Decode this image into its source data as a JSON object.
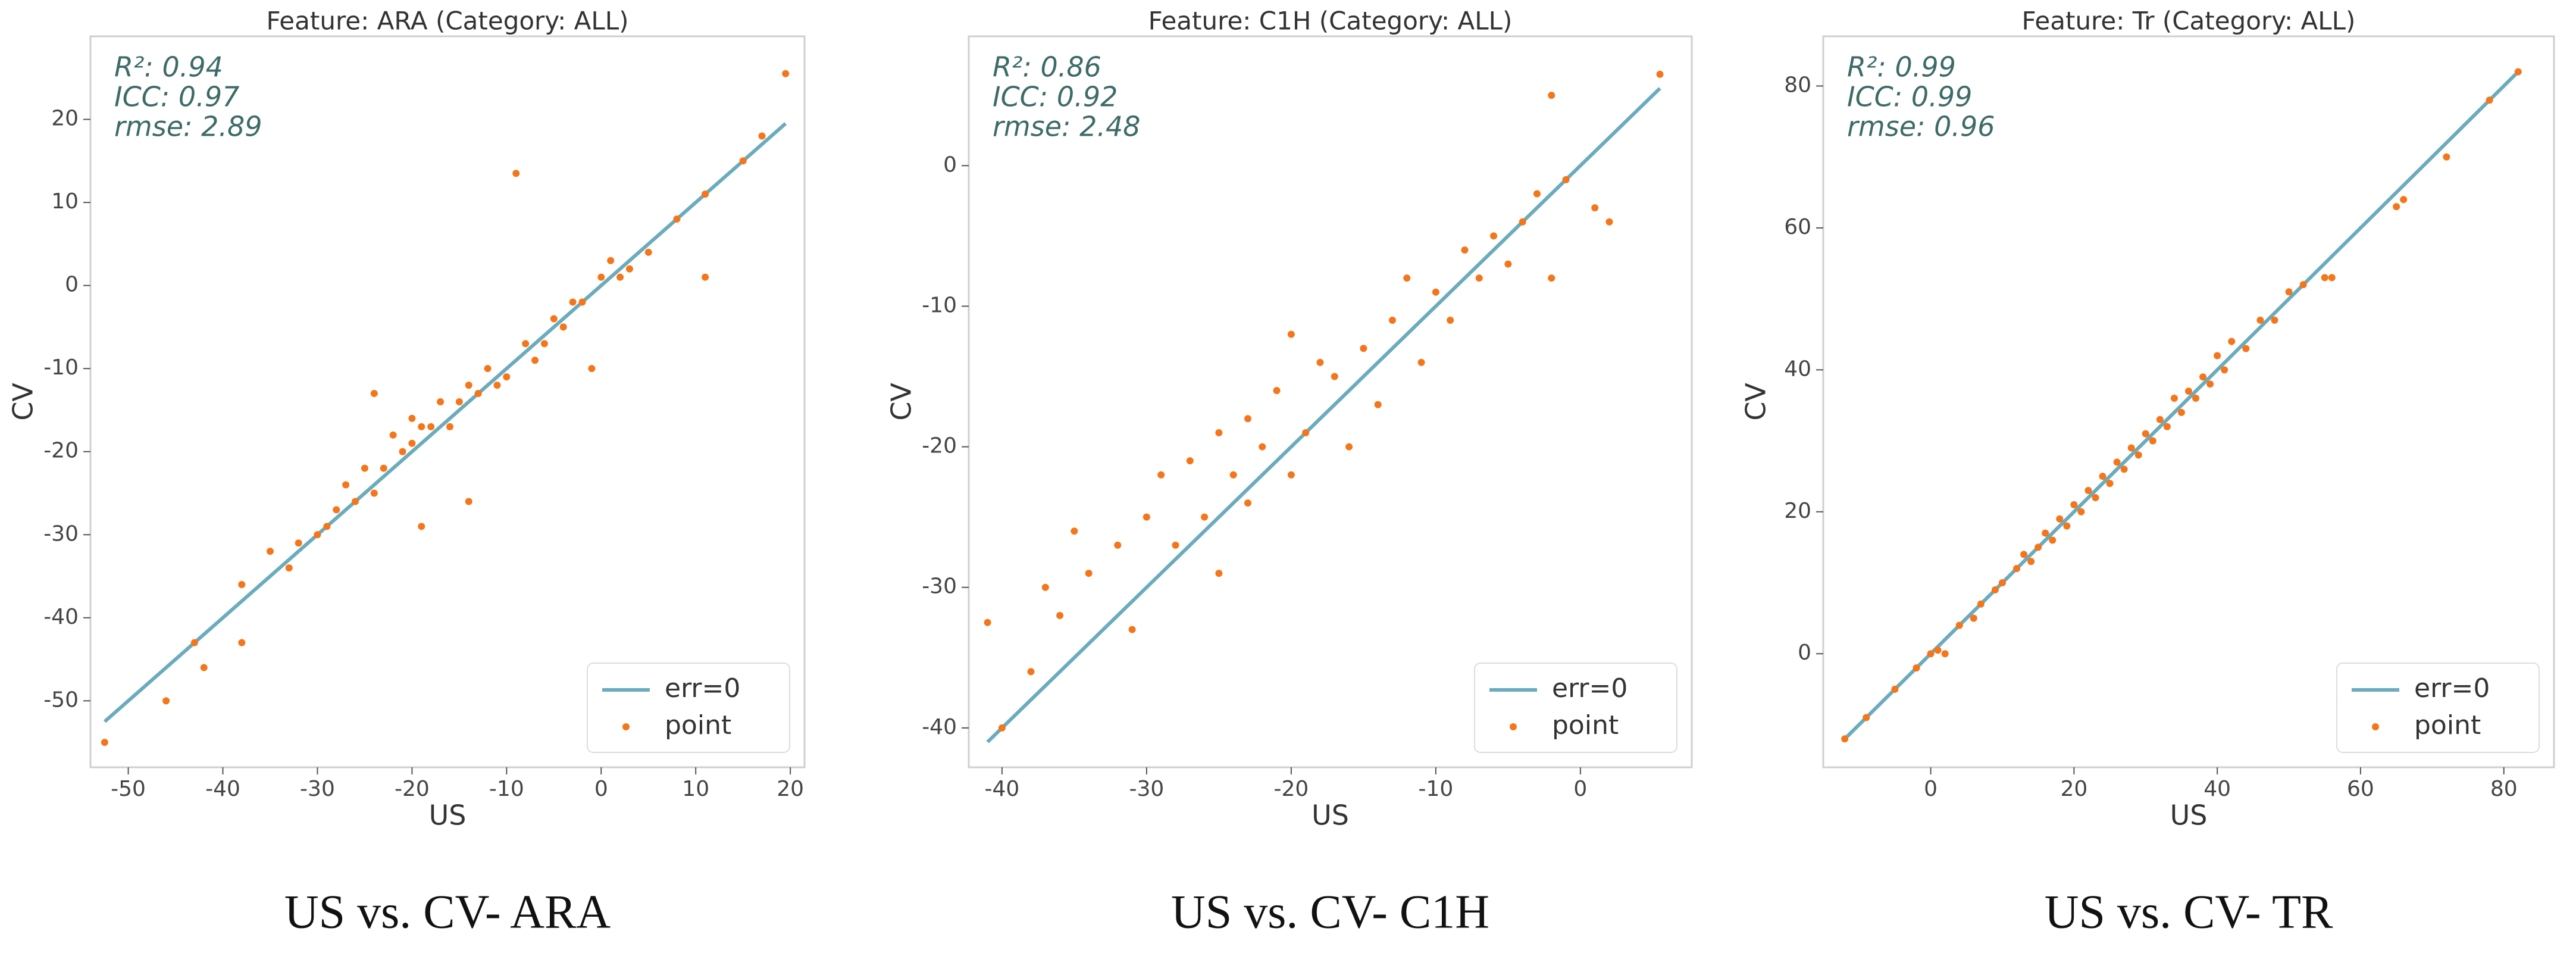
{
  "chart_data": [
    {
      "type": "scatter",
      "title": "Feature: ARA (Category: ALL)",
      "xlabel": "US",
      "ylabel": "CV",
      "caption": "US vs. CV- ARA",
      "annotations": [
        "R²: 0.94",
        "ICC: 0.97",
        "rmse: 2.89"
      ],
      "legend": "lower right",
      "xlim": [
        -54,
        21.5
      ],
      "ylim": [
        -58,
        30
      ],
      "xticks": [
        -50,
        -40,
        -30,
        -20,
        -10,
        0,
        10,
        20
      ],
      "yticks": [
        -50,
        -40,
        -30,
        -20,
        -10,
        0,
        10,
        20
      ],
      "series": [
        {
          "name": "err=0",
          "color": "#6aabbd",
          "mode": "line",
          "x": [
            -52.5,
            19.5
          ],
          "values": [
            -52.5,
            19.5
          ]
        },
        {
          "name": "point",
          "color": "#f5761a",
          "mode": "points",
          "x": [
            -52.5,
            -46,
            -43,
            -42,
            -38,
            -38,
            -35,
            -33,
            -32,
            -30,
            -29,
            -28,
            -27,
            -26,
            -25,
            -24,
            -24,
            -23,
            -22,
            -21,
            -20,
            -20,
            -19,
            -19,
            -18,
            -17,
            -16,
            -15,
            -14,
            -14,
            -13,
            -12,
            -11,
            -10,
            -9,
            -8,
            -7,
            -6,
            -5,
            -4,
            -3,
            -2,
            -1,
            0,
            1,
            2,
            3,
            5,
            8,
            11,
            11,
            15,
            17,
            19.5
          ],
          "values": [
            -55,
            -50,
            -43,
            -46,
            -36,
            -43,
            -32,
            -34,
            -31,
            -30,
            -29,
            -27,
            -24,
            -26,
            -22,
            -25,
            -13,
            -22,
            -18,
            -20,
            -19,
            -16,
            -17,
            -29,
            -17,
            -14,
            -17,
            -14,
            -12,
            -26,
            -13,
            -10,
            -12,
            -11,
            13.5,
            -7,
            -9,
            -7,
            -4,
            -5,
            -2,
            -2,
            -10,
            1,
            3,
            1,
            2,
            4,
            8,
            11,
            1,
            15,
            18,
            25.5
          ]
        }
      ]
    },
    {
      "type": "scatter",
      "title": "Feature: C1H (Category: ALL)",
      "xlabel": "US",
      "ylabel": "CV",
      "caption": "US vs. CV- C1H",
      "annotations": [
        "R²: 0.86",
        "ICC: 0.92",
        "rmse: 2.48"
      ],
      "legend": "lower right",
      "xlim": [
        -42.3,
        7.7
      ],
      "ylim": [
        -42.8,
        9.2
      ],
      "xticks": [
        -40,
        -30,
        -20,
        -10,
        0
      ],
      "yticks": [
        -40,
        -30,
        -20,
        -10,
        0
      ],
      "series": [
        {
          "name": "err=0",
          "color": "#6aabbd",
          "mode": "line",
          "x": [
            -41,
            5.5
          ],
          "values": [
            -41,
            5.5
          ]
        },
        {
          "name": "point",
          "color": "#f5761a",
          "mode": "points",
          "x": [
            -41,
            -40,
            -38,
            -37,
            -36,
            -35,
            -34,
            -32,
            -31,
            -30,
            -29,
            -28,
            -27,
            -26,
            -25,
            -25,
            -24,
            -23,
            -23,
            -22,
            -21,
            -20,
            -20,
            -19,
            -18,
            -17,
            -16,
            -15,
            -14,
            -13,
            -12,
            -11,
            -10,
            -9,
            -8,
            -7,
            -6,
            -5,
            -4,
            -3,
            -2,
            -2,
            -1,
            1,
            2,
            5.5
          ],
          "values": [
            -32.5,
            -40,
            -36,
            -30,
            -32,
            -26,
            -29,
            -27,
            -33,
            -25,
            -22,
            -27,
            -21,
            -25,
            -19,
            -29,
            -22,
            -18,
            -24,
            -20,
            -16,
            -12,
            -22,
            -19,
            -14,
            -15,
            -20,
            -13,
            -17,
            -11,
            -8,
            -14,
            -9,
            -11,
            -6,
            -8,
            -5,
            -7,
            -4,
            -2,
            5,
            -8,
            -1,
            -3,
            -4,
            6.5
          ]
        }
      ]
    },
    {
      "type": "scatter",
      "title": "Feature: Tr (Category: ALL)",
      "xlabel": "US",
      "ylabel": "CV",
      "caption": "US vs. CV- TR",
      "annotations": [
        "R²: 0.99",
        "ICC: 0.99",
        "rmse: 0.96"
      ],
      "legend": "lower right",
      "xlim": [
        -15,
        87
      ],
      "ylim": [
        -16,
        87
      ],
      "xticks": [
        0,
        20,
        40,
        60,
        80
      ],
      "yticks": [
        0,
        20,
        40,
        60,
        80
      ],
      "series": [
        {
          "name": "err=0",
          "color": "#6aabbd",
          "mode": "line",
          "x": [
            -12,
            82
          ],
          "values": [
            -12,
            82
          ]
        },
        {
          "name": "point",
          "color": "#f5761a",
          "mode": "points",
          "x": [
            -12,
            -9,
            -5,
            -2,
            0,
            1,
            2,
            4,
            6,
            7,
            9,
            10,
            12,
            13,
            14,
            15,
            16,
            17,
            18,
            19,
            20,
            21,
            22,
            23,
            24,
            25,
            26,
            27,
            28,
            29,
            30,
            31,
            32,
            33,
            34,
            35,
            36,
            37,
            38,
            39,
            40,
            41,
            42,
            44,
            46,
            48,
            50,
            52,
            55,
            56,
            65,
            66,
            72,
            78,
            82
          ],
          "values": [
            -12,
            -9,
            -5,
            -2,
            0,
            0.5,
            0,
            4,
            5,
            7,
            9,
            10,
            12,
            14,
            13,
            15,
            17,
            16,
            19,
            18,
            21,
            20,
            23,
            22,
            25,
            24,
            27,
            26,
            29,
            28,
            31,
            30,
            33,
            32,
            36,
            34,
            37,
            36,
            39,
            38,
            42,
            40,
            44,
            43,
            47,
            47,
            51,
            52,
            53,
            53,
            63,
            64,
            70,
            78,
            82
          ]
        }
      ]
    }
  ]
}
